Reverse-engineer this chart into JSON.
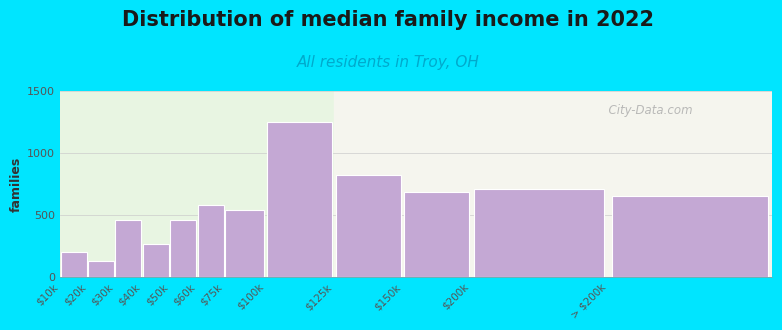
{
  "title": "Distribution of median family income in 2022",
  "subtitle": "All residents in Troy, OH",
  "ylabel": "families",
  "categories": [
    "$10k",
    "$20k",
    "$30k",
    "$40k",
    "$50k",
    "$60k",
    "$75k",
    "$100k",
    "$125k",
    "$150k",
    "$200k",
    "> $200k"
  ],
  "values": [
    200,
    130,
    460,
    260,
    460,
    580,
    540,
    1250,
    820,
    680,
    710,
    650
  ],
  "bar_color": "#c4a8d4",
  "bar_edge_color": "#ffffff",
  "background_outer": "#00e5ff",
  "plot_bg_left": "#e8f5e2",
  "plot_bg_right": "#f5f5ee",
  "ylim": [
    0,
    1500
  ],
  "yticks": [
    0,
    500,
    1000,
    1500
  ],
  "title_fontsize": 15,
  "subtitle_fontsize": 11,
  "subtitle_color": "#00aacc",
  "ylabel_fontsize": 9,
  "watermark_text": "  City-Data.com",
  "left_edges": [
    0,
    10,
    20,
    30,
    40,
    50,
    60,
    75,
    100,
    125,
    150,
    200
  ],
  "right_edges": [
    10,
    20,
    30,
    40,
    50,
    60,
    75,
    100,
    125,
    150,
    200,
    260
  ],
  "green_split": 100
}
